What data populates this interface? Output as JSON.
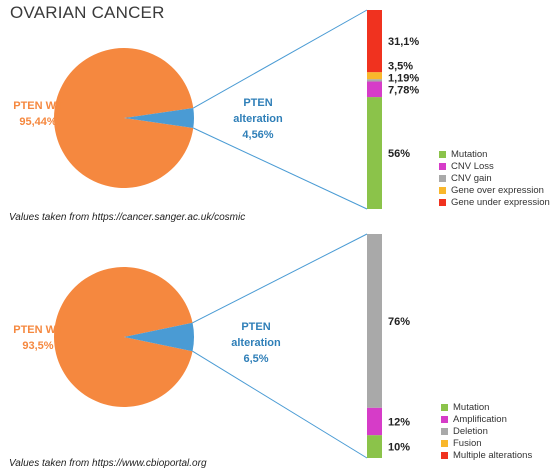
{
  "title": "OVARIAN CANCER",
  "chart_data": [
    {
      "type": "pie",
      "labels": [
        "PTEN WT",
        "PTEN alteration"
      ],
      "values": [
        95.44,
        4.56
      ],
      "value_labels": [
        "95,44%",
        "4,56%"
      ],
      "colors": [
        "#F5883F",
        "#4A9BD4"
      ],
      "source": "Values taken from https://cancer.sanger.ac.uk/cosmic",
      "breakdown": {
        "type": "bar",
        "stacked": true,
        "categories": [
          "Mutation",
          "CNV Loss",
          "CNV gain",
          "Gene over expression",
          "Gene under expression"
        ],
        "values": [
          56,
          7.78,
          1.19,
          3.5,
          31.1
        ],
        "value_labels": [
          "56%",
          "7,78%",
          "1,19%",
          "3,5%",
          "31,1%"
        ],
        "colors": [
          "#8BC34A",
          "#D63CC8",
          "#A9A9A9",
          "#F9B72B",
          "#F0321F"
        ],
        "legend_position": "bottom-right"
      }
    },
    {
      "type": "pie",
      "labels": [
        "PTEN WT",
        "PTEN alteration"
      ],
      "values": [
        93.5,
        6.5
      ],
      "value_labels": [
        "93,5%",
        "6,5%"
      ],
      "colors": [
        "#F5883F",
        "#4A9BD4"
      ],
      "source": "Values taken from https://www.cbioportal.org",
      "breakdown": {
        "type": "bar",
        "stacked": true,
        "categories": [
          "Mutation",
          "Amplification",
          "Deletion",
          "Fusion",
          "Multiple alterations"
        ],
        "values": [
          10,
          12,
          76,
          0,
          0
        ],
        "value_labels": [
          "10%",
          "12%",
          "76%",
          "",
          ""
        ],
        "colors": [
          "#8BC34A",
          "#D63CC8",
          "#A9A9A9",
          "#F9B72B",
          "#F0321F"
        ],
        "legend_position": "bottom-right"
      }
    }
  ]
}
